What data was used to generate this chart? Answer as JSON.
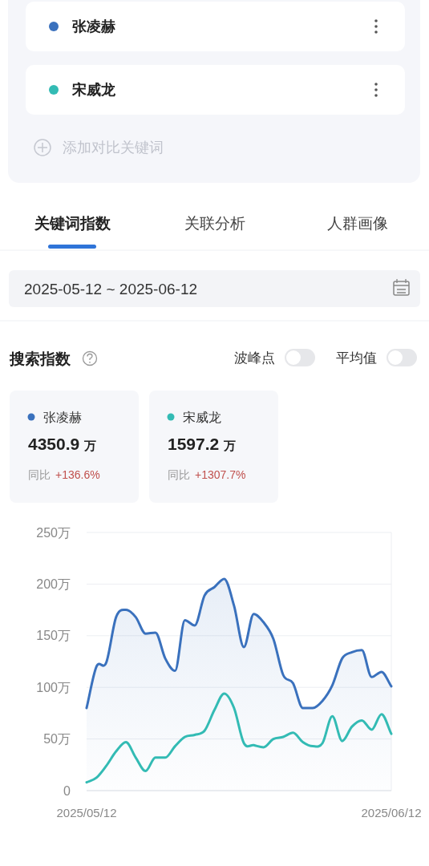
{
  "chart_data": {
    "type": "line",
    "title": "搜索指数",
    "x": [
      "2025-05-12",
      "2025-05-13",
      "2025-05-14",
      "2025-05-15",
      "2025-05-16",
      "2025-05-17",
      "2025-05-18",
      "2025-05-19",
      "2025-05-20",
      "2025-05-21",
      "2025-05-22",
      "2025-05-23",
      "2025-05-24",
      "2025-05-25",
      "2025-05-26",
      "2025-05-27",
      "2025-05-28",
      "2025-05-29",
      "2025-05-30",
      "2025-05-31",
      "2025-06-01",
      "2025-06-02",
      "2025-06-03",
      "2025-06-04",
      "2025-06-05",
      "2025-06-06",
      "2025-06-07",
      "2025-06-08",
      "2025-06-09",
      "2025-06-10",
      "2025-06-11",
      "2025-06-12"
    ],
    "series": [
      {
        "name": "张凌赫",
        "type": "area",
        "color": "#3a71bd",
        "values": [
          80,
          120,
          124,
          168,
          175,
          168,
          152,
          153,
          128,
          116,
          165,
          160,
          189,
          197,
          205,
          179,
          139,
          171,
          163,
          147,
          112,
          104,
          80,
          80,
          87,
          102,
          128,
          134,
          136,
          110,
          115,
          101
        ]
      },
      {
        "name": "宋威龙",
        "type": "line",
        "color": "#33bbb4",
        "values": [
          8,
          12.5,
          24,
          38,
          47,
          32,
          19,
          32,
          32,
          43,
          52,
          54,
          58,
          78,
          94,
          80,
          46,
          44,
          42,
          50,
          52,
          56,
          47,
          43,
          46,
          72,
          48,
          62,
          68,
          59,
          74,
          55
        ]
      }
    ],
    "xlim": [
      "2025-05-12",
      "2025-06-12"
    ],
    "xticks": [
      {
        "value": "2025-05-12",
        "label": "2025/05/12"
      },
      {
        "value": "2025-06-12",
        "label": "2025/06/12"
      }
    ],
    "ylim": [
      0,
      250
    ],
    "yticks": [
      0,
      {
        "value": 50,
        "label": "50万"
      },
      {
        "value": 100,
        "label": "100万"
      },
      {
        "value": 150,
        "label": "150万"
      },
      {
        "value": 200,
        "label": "200万"
      },
      {
        "value": 250,
        "label": "250万"
      }
    ],
    "grid": "y",
    "legend": "top left",
    "marker": "none",
    "line_style": "solid",
    "annotations": [
      "添加对比关键词",
      "关键词指数",
      "关联分析",
      "人群画像",
      "2025-05-12  ~  2025-06-12",
      "波峰点",
      "平均值",
      "4350.9",
      "万",
      "同比",
      "+136.6%",
      "1597.2",
      "万",
      "同比",
      "+1307.7%"
    ]
  }
}
